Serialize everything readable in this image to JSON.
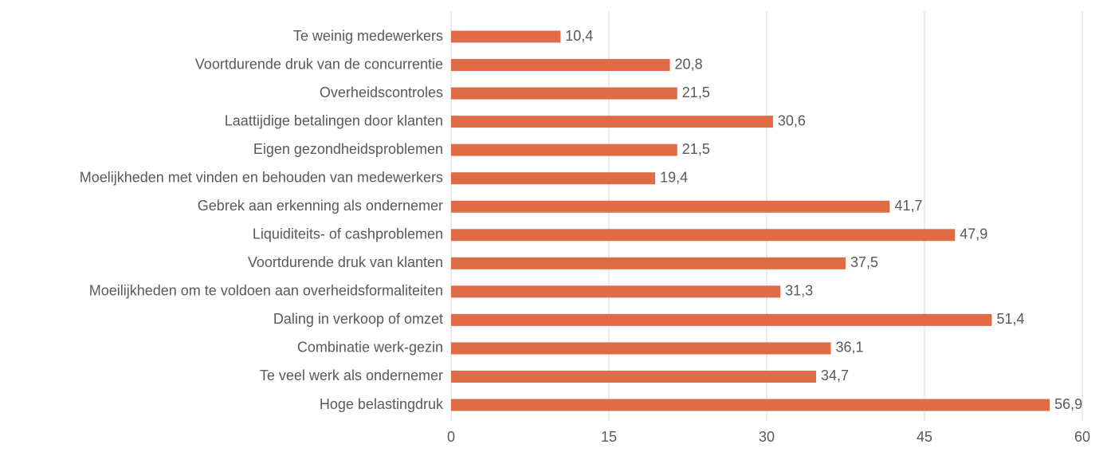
{
  "chart_data": {
    "type": "bar",
    "orientation": "horizontal",
    "categories": [
      "Te weinig medewerkers",
      "Voortdurende druk van de concurrentie",
      "Overheidscontroles",
      "Laattijdige betalingen door klanten",
      "Eigen gezondheidsproblemen",
      "Moelijkheden met vinden en behouden van medewerkers",
      "Gebrek aan erkenning als ondernemer",
      "Liquiditeits- of cashproblemen",
      "Voortdurende druk van klanten",
      "Moeilijkheden om te voldoen aan overheidsformaliteiten",
      "Daling in verkoop of omzet",
      "Combinatie werk-gezin",
      "Te veel werk als ondernemer",
      "Hoge belastingdruk"
    ],
    "values": [
      10.4,
      20.8,
      21.5,
      30.6,
      21.5,
      19.4,
      41.7,
      47.9,
      37.5,
      31.3,
      51.4,
      36.1,
      34.7,
      56.9
    ],
    "value_labels": [
      "10,4",
      "20,8",
      "21,5",
      "30,6",
      "21,5",
      "19,4",
      "41,7",
      "47,9",
      "37,5",
      "31,3",
      "51,4",
      "36,1",
      "34,7",
      "56,9"
    ],
    "color": "#e06c45",
    "xlim": [
      0,
      60
    ],
    "xticks": [
      0,
      15,
      30,
      45,
      60
    ],
    "grid": true
  }
}
